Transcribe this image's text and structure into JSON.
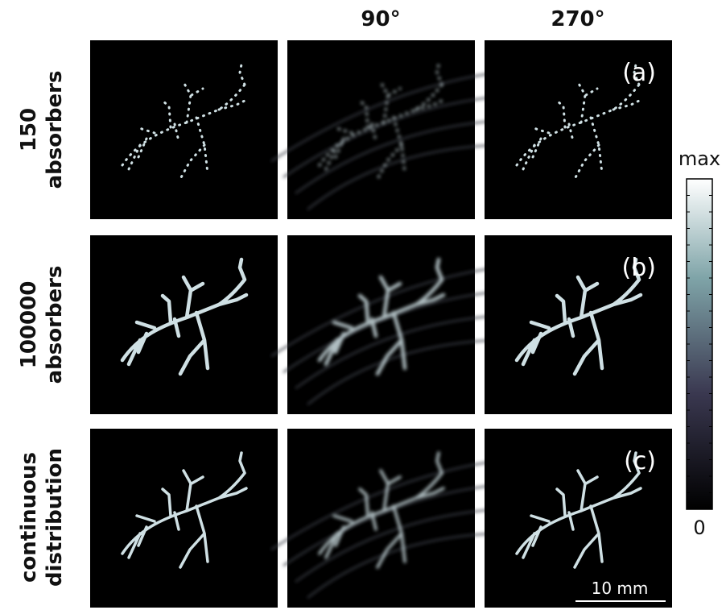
{
  "column_headers": [
    "90°",
    "270°"
  ],
  "rows": [
    {
      "label": [
        "150",
        "absorbers"
      ],
      "panel_label": "(a)"
    },
    {
      "label": [
        "100000",
        "absorbers"
      ],
      "panel_label": "(b)"
    },
    {
      "label": [
        "continuous",
        "distribution"
      ],
      "panel_label": "(c)"
    }
  ],
  "colorbar": {
    "top_label": "max",
    "bottom_label": "0"
  },
  "scale_bar": "10 mm"
}
